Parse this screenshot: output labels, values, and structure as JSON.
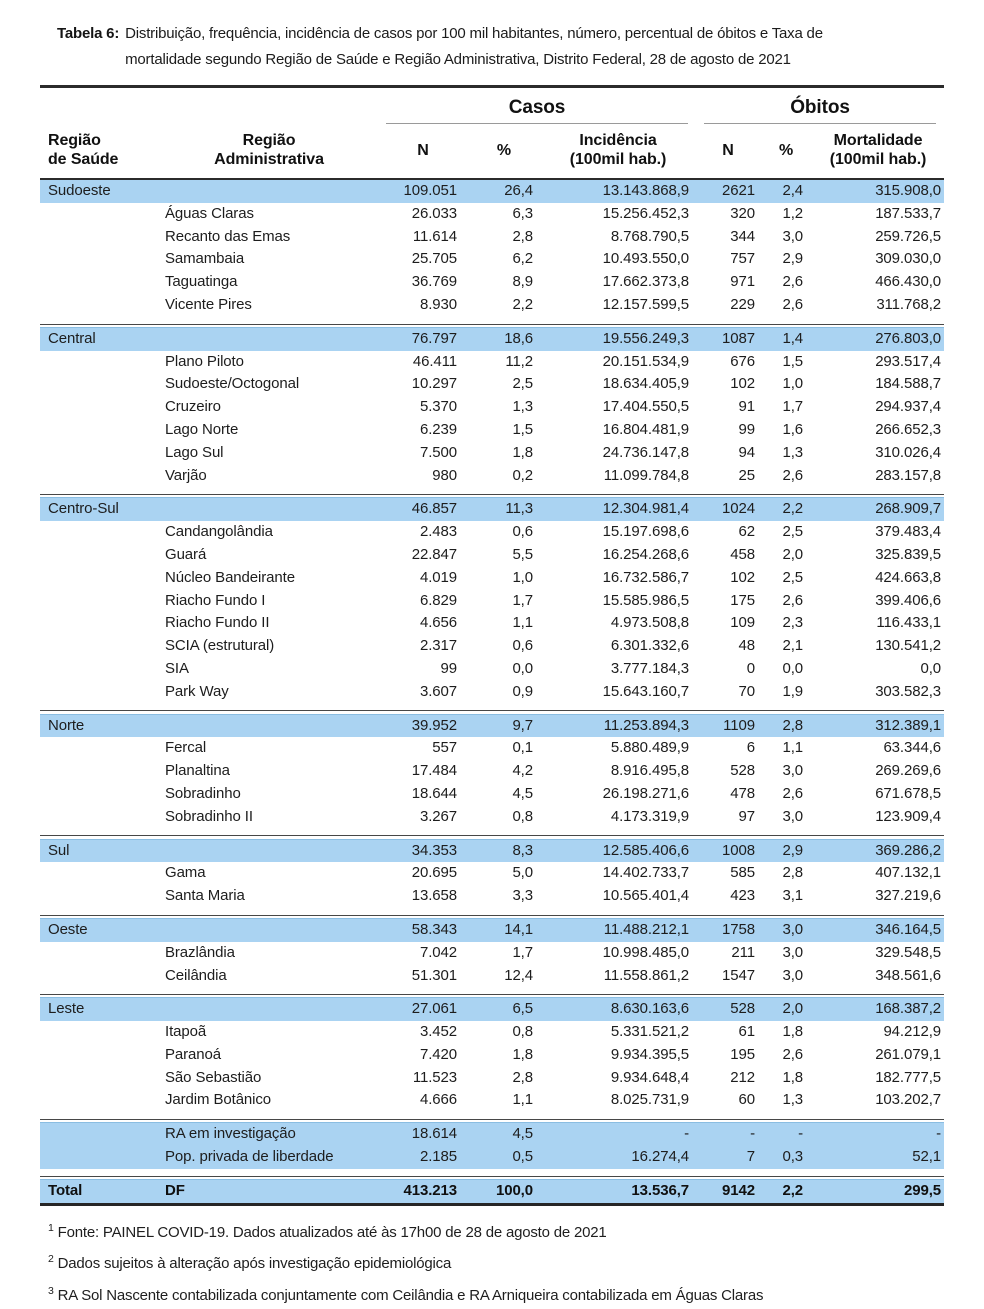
{
  "title": {
    "label": "Tabela 6:",
    "text": "Distribuição, frequência, incidência de casos por 100 mil habitantes, número, percentual de óbitos e Taxa de mortalidade segundo Região de Saúde e Região Administrativa, Distrito Federal, 28 de agosto de 2021"
  },
  "table": {
    "groups": {
      "casos": "Casos",
      "obitos": "Óbitos"
    },
    "columns": [
      {
        "key": "regiao_saude",
        "label": "Região\nde Saúde"
      },
      {
        "key": "regiao_administrativa",
        "label": "Região\nAdministrativa"
      },
      {
        "key": "n_casos",
        "label": "N"
      },
      {
        "key": "pct_casos",
        "label": "%"
      },
      {
        "key": "incidencia",
        "label": "Incidência\n(100mil hab.)"
      },
      {
        "key": "n_obitos",
        "label": "N"
      },
      {
        "key": "pct_obitos",
        "label": "%"
      },
      {
        "key": "mortalidade",
        "label": "Mortalidade\n(100mil hab.)"
      }
    ],
    "colors": {
      "band_blue": "#aad3f2",
      "rule_dark": "#2b2b2b",
      "rule_gray": "#9a9a9a"
    },
    "rows": [
      {
        "type": "region",
        "cells": [
          "Sudoeste",
          "",
          "109.051",
          "26,4",
          "13.143.868,9",
          "2621",
          "2,4",
          "315.908,0"
        ]
      },
      {
        "type": "ra",
        "cells": [
          "",
          "Águas Claras",
          "26.033",
          "6,3",
          "15.256.452,3",
          "320",
          "1,2",
          "187.533,7"
        ]
      },
      {
        "type": "ra",
        "cells": [
          "",
          "Recanto das Emas",
          "11.614",
          "2,8",
          "8.768.790,5",
          "344",
          "3,0",
          "259.726,5"
        ]
      },
      {
        "type": "ra",
        "cells": [
          "",
          "Samambaia",
          "25.705",
          "6,2",
          "10.493.550,0",
          "757",
          "2,9",
          "309.030,0"
        ]
      },
      {
        "type": "ra",
        "cells": [
          "",
          "Taguatinga",
          "36.769",
          "8,9",
          "17.662.373,8",
          "971",
          "2,6",
          "466.430,0"
        ]
      },
      {
        "type": "ra",
        "cells": [
          "",
          "Vicente Pires",
          "8.930",
          "2,2",
          "12.157.599,5",
          "229",
          "2,6",
          "311.768,2"
        ]
      },
      {
        "type": "sep"
      },
      {
        "type": "region",
        "cells": [
          "Central",
          "",
          "76.797",
          "18,6",
          "19.556.249,3",
          "1087",
          "1,4",
          "276.803,0"
        ]
      },
      {
        "type": "ra",
        "cells": [
          "",
          "Plano Piloto",
          "46.411",
          "11,2",
          "20.151.534,9",
          "676",
          "1,5",
          "293.517,4"
        ]
      },
      {
        "type": "ra",
        "cells": [
          "",
          "Sudoeste/Octogonal",
          "10.297",
          "2,5",
          "18.634.405,9",
          "102",
          "1,0",
          "184.588,7"
        ]
      },
      {
        "type": "ra",
        "cells": [
          "",
          "Cruzeiro",
          "5.370",
          "1,3",
          "17.404.550,5",
          "91",
          "1,7",
          "294.937,4"
        ]
      },
      {
        "type": "ra",
        "cells": [
          "",
          "Lago Norte",
          "6.239",
          "1,5",
          "16.804.481,9",
          "99",
          "1,6",
          "266.652,3"
        ]
      },
      {
        "type": "ra",
        "cells": [
          "",
          "Lago Sul",
          "7.500",
          "1,8",
          "24.736.147,8",
          "94",
          "1,3",
          "310.026,4"
        ]
      },
      {
        "type": "ra",
        "cells": [
          "",
          "Varjão",
          "980",
          "0,2",
          "11.099.784,8",
          "25",
          "2,6",
          "283.157,8"
        ]
      },
      {
        "type": "sep"
      },
      {
        "type": "region",
        "cells": [
          "Centro-Sul",
          "",
          "46.857",
          "11,3",
          "12.304.981,4",
          "1024",
          "2,2",
          "268.909,7"
        ]
      },
      {
        "type": "ra",
        "cells": [
          "",
          "Candangolândia",
          "2.483",
          "0,6",
          "15.197.698,6",
          "62",
          "2,5",
          "379.483,4"
        ]
      },
      {
        "type": "ra",
        "cells": [
          "",
          "Guará",
          "22.847",
          "5,5",
          "16.254.268,6",
          "458",
          "2,0",
          "325.839,5"
        ]
      },
      {
        "type": "ra",
        "cells": [
          "",
          "Núcleo Bandeirante",
          "4.019",
          "1,0",
          "16.732.586,7",
          "102",
          "2,5",
          "424.663,8"
        ]
      },
      {
        "type": "ra",
        "cells": [
          "",
          "Riacho Fundo I",
          "6.829",
          "1,7",
          "15.585.986,5",
          "175",
          "2,6",
          "399.406,6"
        ]
      },
      {
        "type": "ra",
        "cells": [
          "",
          "Riacho Fundo II",
          "4.656",
          "1,1",
          "4.973.508,8",
          "109",
          "2,3",
          "116.433,1"
        ]
      },
      {
        "type": "ra",
        "cells": [
          "",
          "SCIA (estrutural)",
          "2.317",
          "0,6",
          "6.301.332,6",
          "48",
          "2,1",
          "130.541,2"
        ]
      },
      {
        "type": "ra",
        "cells": [
          "",
          "SIA",
          "99",
          "0,0",
          "3.777.184,3",
          "0",
          "0,0",
          "0,0"
        ]
      },
      {
        "type": "ra",
        "cells": [
          "",
          "Park Way",
          "3.607",
          "0,9",
          "15.643.160,7",
          "70",
          "1,9",
          "303.582,3"
        ]
      },
      {
        "type": "sep"
      },
      {
        "type": "region",
        "cells": [
          "Norte",
          "",
          "39.952",
          "9,7",
          "11.253.894,3",
          "1109",
          "2,8",
          "312.389,1"
        ]
      },
      {
        "type": "ra",
        "cells": [
          "",
          "Fercal",
          "557",
          "0,1",
          "5.880.489,9",
          "6",
          "1,1",
          "63.344,6"
        ]
      },
      {
        "type": "ra",
        "cells": [
          "",
          "Planaltina",
          "17.484",
          "4,2",
          "8.916.495,8",
          "528",
          "3,0",
          "269.269,6"
        ]
      },
      {
        "type": "ra",
        "cells": [
          "",
          "Sobradinho",
          "18.644",
          "4,5",
          "26.198.271,6",
          "478",
          "2,6",
          "671.678,5"
        ]
      },
      {
        "type": "ra",
        "cells": [
          "",
          "Sobradinho II",
          "3.267",
          "0,8",
          "4.173.319,9",
          "97",
          "3,0",
          "123.909,4"
        ]
      },
      {
        "type": "sep"
      },
      {
        "type": "region",
        "cells": [
          "Sul",
          "",
          "34.353",
          "8,3",
          "12.585.406,6",
          "1008",
          "2,9",
          "369.286,2"
        ]
      },
      {
        "type": "ra",
        "cells": [
          "",
          "Gama",
          "20.695",
          "5,0",
          "14.402.733,7",
          "585",
          "2,8",
          "407.132,1"
        ]
      },
      {
        "type": "ra",
        "cells": [
          "",
          "Santa Maria",
          "13.658",
          "3,3",
          "10.565.401,4",
          "423",
          "3,1",
          "327.219,6"
        ]
      },
      {
        "type": "sep"
      },
      {
        "type": "region",
        "cells": [
          "Oeste",
          "",
          "58.343",
          "14,1",
          "11.488.212,1",
          "1758",
          "3,0",
          "346.164,5"
        ]
      },
      {
        "type": "ra",
        "cells": [
          "",
          "Brazlândia",
          "7.042",
          "1,7",
          "10.998.485,0",
          "211",
          "3,0",
          "329.548,5"
        ]
      },
      {
        "type": "ra",
        "cells": [
          "",
          "Ceilândia",
          "51.301",
          "12,4",
          "11.558.861,2",
          "1547",
          "3,0",
          "348.561,6"
        ]
      },
      {
        "type": "sep"
      },
      {
        "type": "region",
        "cells": [
          "Leste",
          "",
          "27.061",
          "6,5",
          "8.630.163,6",
          "528",
          "2,0",
          "168.387,2"
        ]
      },
      {
        "type": "ra",
        "cells": [
          "",
          "Itapoã",
          "3.452",
          "0,8",
          "5.331.521,2",
          "61",
          "1,8",
          "94.212,9"
        ]
      },
      {
        "type": "ra",
        "cells": [
          "",
          "Paranoá",
          "7.420",
          "1,8",
          "9.934.395,5",
          "195",
          "2,6",
          "261.079,1"
        ]
      },
      {
        "type": "ra",
        "cells": [
          "",
          "São Sebastião",
          "11.523",
          "2,8",
          "9.934.648,4",
          "212",
          "1,8",
          "182.777,5"
        ]
      },
      {
        "type": "ra",
        "cells": [
          "",
          "Jardim Botânico",
          "4.666",
          "1,1",
          "8.025.731,9",
          "60",
          "1,3",
          "103.202,7"
        ]
      },
      {
        "type": "sep"
      },
      {
        "type": "special",
        "cells": [
          "",
          "RA em investigação",
          "18.614",
          "4,5",
          "-",
          "-",
          "-",
          "-"
        ]
      },
      {
        "type": "special",
        "cells": [
          "",
          "Pop. privada de liberdade",
          "2.185",
          "0,5",
          "16.274,4",
          "7",
          "0,3",
          "52,1"
        ]
      },
      {
        "type": "sep"
      },
      {
        "type": "total",
        "cells": [
          "Total",
          "DF",
          "413.213",
          "100,0",
          "13.536,7",
          "9142",
          "2,2",
          "299,5"
        ]
      }
    ]
  },
  "footnotes": [
    {
      "sup": "1",
      "text": "Fonte: PAINEL COVID-19. Dados atualizados até às 17h00 de 28 de agosto de 2021"
    },
    {
      "sup": "2",
      "text": "Dados sujeitos à alteração após investigação epidemiológica"
    },
    {
      "sup": "3",
      "text": "RA Sol Nascente contabilizada conjuntamente com Ceilândia e RA Arniqueira contabilizada em Águas Claras"
    }
  ]
}
